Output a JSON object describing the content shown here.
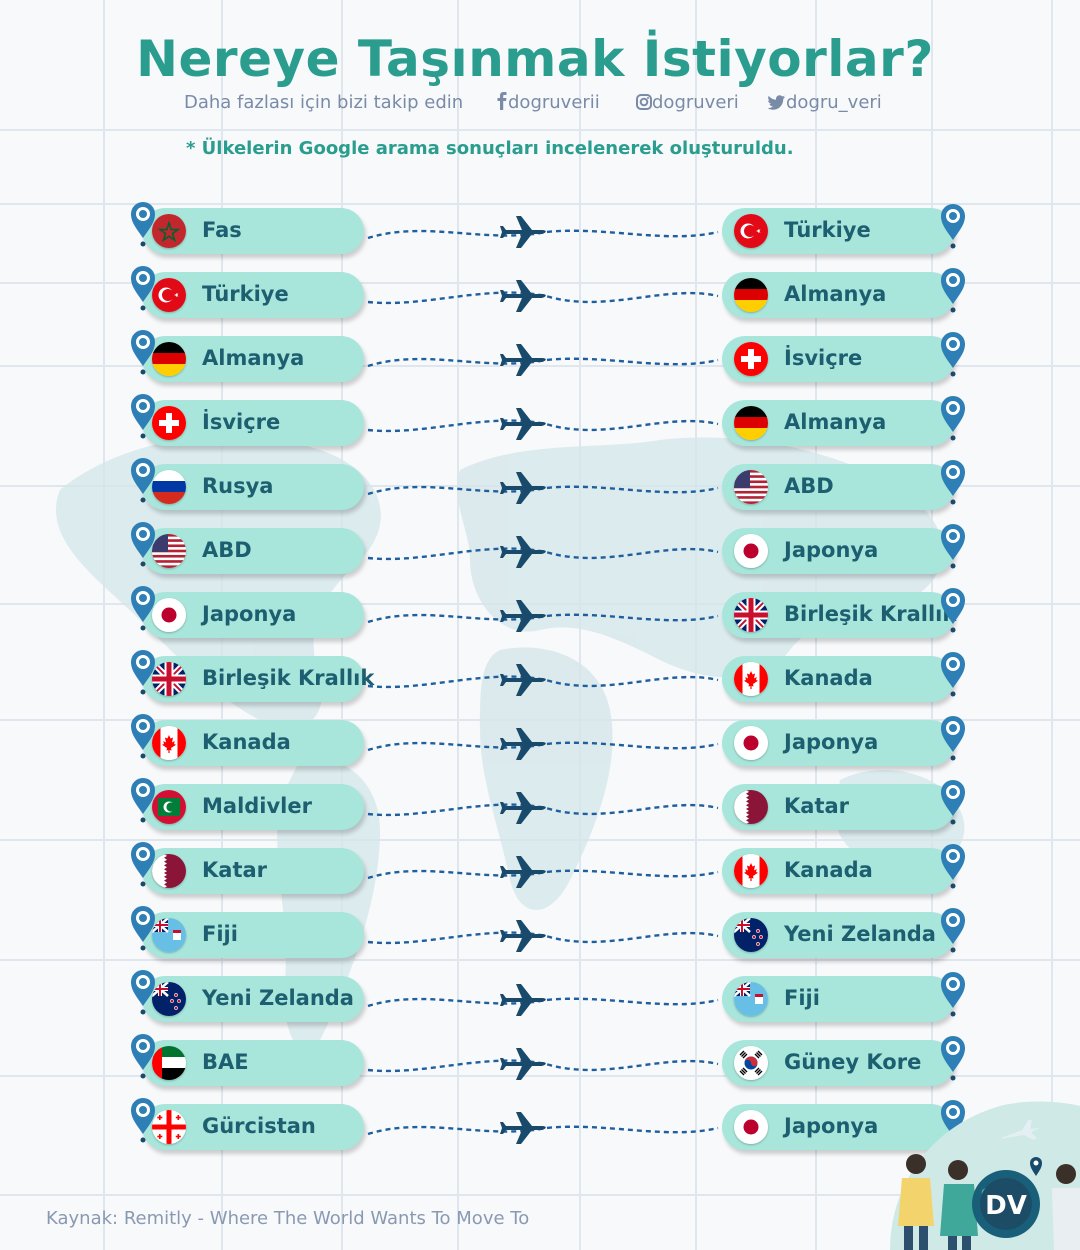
{
  "header": {
    "title": "Nereye Taşınmak İstiyorlar?",
    "follow_text": "Daha fazlası için bizi takip edin",
    "facebook": "dogruverii",
    "instagram": "dogruveri",
    "twitter": "dogru_veri"
  },
  "note": {
    "prefix": "* Ülkelerin ",
    "highlight": "Google",
    "suffix": " arama sonuçları incelenerek oluşturuldu."
  },
  "routes": [
    {
      "from": "Fas",
      "from_flag": "morocco",
      "to": "Türkiye",
      "to_flag": "turkey"
    },
    {
      "from": "Türkiye",
      "from_flag": "turkey",
      "to": "Almanya",
      "to_flag": "germany"
    },
    {
      "from": "Almanya",
      "from_flag": "germany",
      "to": "İsviçre",
      "to_flag": "switzerland"
    },
    {
      "from": "İsviçre",
      "from_flag": "switzerland",
      "to": "Almanya",
      "to_flag": "germany"
    },
    {
      "from": "Rusya",
      "from_flag": "russia",
      "to": "ABD",
      "to_flag": "usa"
    },
    {
      "from": "ABD",
      "from_flag": "usa",
      "to": "Japonya",
      "to_flag": "japan"
    },
    {
      "from": "Japonya",
      "from_flag": "japan",
      "to": "Birleşik Krallık",
      "to_flag": "uk"
    },
    {
      "from": "Birleşik Krallık",
      "from_flag": "uk",
      "to": "Kanada",
      "to_flag": "canada"
    },
    {
      "from": "Kanada",
      "from_flag": "canada",
      "to": "Japonya",
      "to_flag": "japan"
    },
    {
      "from": "Maldivler",
      "from_flag": "maldives",
      "to": "Katar",
      "to_flag": "qatar"
    },
    {
      "from": "Katar",
      "from_flag": "qatar",
      "to": "Kanada",
      "to_flag": "canada"
    },
    {
      "from": "Fiji",
      "from_flag": "fiji",
      "to": "Yeni Zelanda",
      "to_flag": "newzealand"
    },
    {
      "from": "Yeni Zelanda",
      "from_flag": "newzealand",
      "to": "Fiji",
      "to_flag": "fiji"
    },
    {
      "from": "BAE",
      "from_flag": "uae",
      "to": "Güney Kore",
      "to_flag": "southkorea"
    },
    {
      "from": "Gürcistan",
      "from_flag": "georgia",
      "to": "Japonya",
      "to_flag": "japan"
    }
  ],
  "footer": {
    "source": "Kaynak: Remitly - Where The World Wants To Move To",
    "logo_text": "DV"
  },
  "colors": {
    "accent": "#2a9d8f",
    "pill": "#a8e6db",
    "country_text": "#1d5f70",
    "route_line": "#1f5f9e",
    "plane": "#1a4a6b"
  }
}
